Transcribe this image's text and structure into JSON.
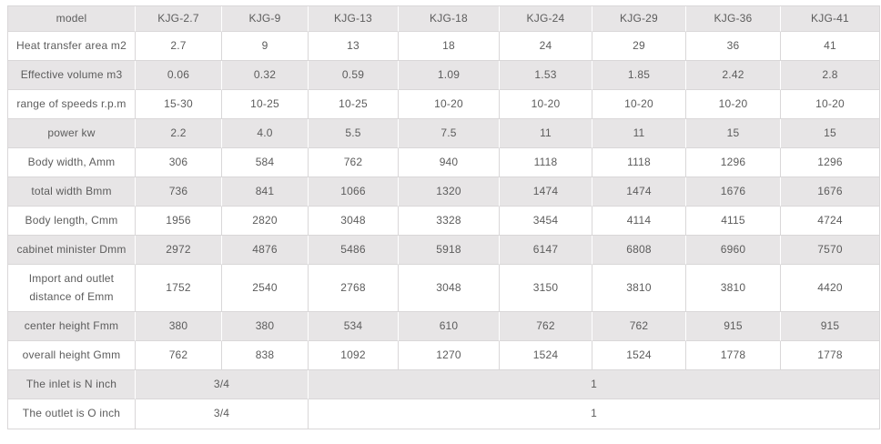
{
  "colors": {
    "stripe_gray": "#e7e5e6",
    "border_gray": "#d9d7d8",
    "text_gray": "#5c5c5c",
    "row_white": "#ffffff"
  },
  "table": {
    "header": {
      "model_label": "model",
      "models": [
        "KJG-2.7",
        "KJG-9",
        "KJG-13",
        "KJG-18",
        "KJG-24",
        "KJG-29",
        "KJG-36",
        "KJG-41"
      ]
    },
    "rows": [
      {
        "label": "Heat transfer area m2",
        "cells": [
          "2.7",
          "9",
          "13",
          "18",
          "24",
          "29",
          "36",
          "41"
        ]
      },
      {
        "label": "Effective volume  m3",
        "cells": [
          "0.06",
          "0.32",
          "0.59",
          "1.09",
          "1.53",
          "1.85",
          "2.42",
          "2.8"
        ]
      },
      {
        "label": "range of speeds r.p.m",
        "cells": [
          "15-30",
          "10-25",
          "10-25",
          "10-20",
          "10-20",
          "10-20",
          "10-20",
          "10-20"
        ]
      },
      {
        "label": "power kw",
        "cells": [
          "2.2",
          "4.0",
          "5.5",
          "7.5",
          "11",
          "11",
          "15",
          "15"
        ]
      },
      {
        "label": "Body width, Amm",
        "cells": [
          "306",
          "584",
          "762",
          "940",
          "1118",
          "1118",
          "1296",
          "1296"
        ]
      },
      {
        "label": "total width Bmm",
        "cells": [
          "736",
          "841",
          "1066",
          "1320",
          "1474",
          "1474",
          "1676",
          "1676"
        ]
      },
      {
        "label": "Body length, Cmm",
        "cells": [
          "1956",
          "2820",
          "3048",
          "3328",
          "3454",
          "4114",
          "4115",
          "4724"
        ]
      },
      {
        "label": "cabinet minister Dmm",
        "cells": [
          "2972",
          "4876",
          "5486",
          "5918",
          "6147",
          "6808",
          "6960",
          "7570"
        ]
      },
      {
        "label": "Import and outlet distance of Emm",
        "tall": true,
        "cells": [
          "1752",
          "2540",
          "2768",
          "3048",
          "3150",
          "3810",
          "3810",
          "4420"
        ]
      },
      {
        "label": "center height Fmm",
        "cells": [
          "380",
          "380",
          "534",
          "610",
          "762",
          "762",
          "915",
          "915"
        ]
      },
      {
        "label": "overall height Gmm",
        "cells": [
          "762",
          "838",
          "1092",
          "1270",
          "1524",
          "1524",
          "1778",
          "1778"
        ]
      },
      {
        "label": "The inlet is N inch",
        "cells": [
          {
            "text": "3/4",
            "span": 2
          },
          {
            "text": "1",
            "span": 6
          }
        ]
      },
      {
        "label": "The outlet is O inch",
        "cells": [
          {
            "text": "3/4",
            "span": 2
          },
          {
            "text": "1",
            "span": 6
          }
        ]
      }
    ]
  }
}
